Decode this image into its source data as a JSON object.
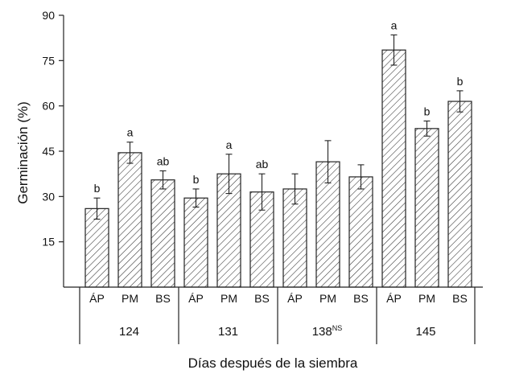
{
  "chart_data": {
    "type": "bar",
    "ylabel": "Germinación (%)",
    "xlabel": "Días después de la siembra",
    "ylim": [
      0,
      90
    ],
    "yticks": [
      15,
      30,
      45,
      60,
      75,
      90
    ],
    "grid": false,
    "pattern": "diagonal-hatch",
    "groups": [
      {
        "label": "124",
        "sup": "",
        "bars": [
          {
            "cat": "ÁP",
            "value": 26,
            "err": 3.5,
            "letter": "b"
          },
          {
            "cat": "PM",
            "value": 44.5,
            "err": 3.5,
            "letter": "a"
          },
          {
            "cat": "BS",
            "value": 35.5,
            "err": 3.0,
            "letter": "ab"
          }
        ]
      },
      {
        "label": "131",
        "sup": "",
        "bars": [
          {
            "cat": "ÁP",
            "value": 29.5,
            "err": 3.0,
            "letter": "b"
          },
          {
            "cat": "PM",
            "value": 37.5,
            "err": 6.5,
            "letter": "a"
          },
          {
            "cat": "BS",
            "value": 31.5,
            "err": 6.0,
            "letter": "ab"
          }
        ]
      },
      {
        "label": "138",
        "sup": "NS",
        "bars": [
          {
            "cat": "ÁP",
            "value": 32.5,
            "err": 5.0,
            "letter": ""
          },
          {
            "cat": "PM",
            "value": 41.5,
            "err": 7.0,
            "letter": ""
          },
          {
            "cat": "BS",
            "value": 36.5,
            "err": 4.0,
            "letter": ""
          }
        ]
      },
      {
        "label": "145",
        "sup": "",
        "bars": [
          {
            "cat": "ÁP",
            "value": 78.5,
            "err": 5.0,
            "letter": "a"
          },
          {
            "cat": "PM",
            "value": 52.5,
            "err": 2.5,
            "letter": "b"
          },
          {
            "cat": "BS",
            "value": 61.5,
            "err": 3.5,
            "letter": "b"
          }
        ]
      }
    ]
  }
}
